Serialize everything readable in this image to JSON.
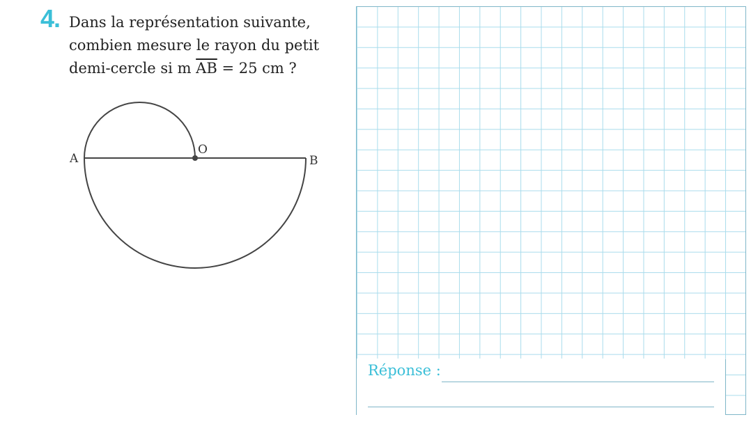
{
  "question": {
    "number": "4.",
    "line1": "Dans la représentation suivante,",
    "line2": "combien mesure le rayon du petit",
    "line3_prefix": "demi-cercle si m ",
    "line3_segment": "AB",
    "line3_suffix": " = 25 cm ?"
  },
  "figure": {
    "label_a": "A",
    "label_o": "O",
    "label_b": "B"
  },
  "answer": {
    "label": "Réponse :"
  },
  "colors": {
    "accent": "#3bbfd8",
    "grid": "#a9dcec",
    "grid_border": "#7fb6c8",
    "stroke": "#444444"
  }
}
